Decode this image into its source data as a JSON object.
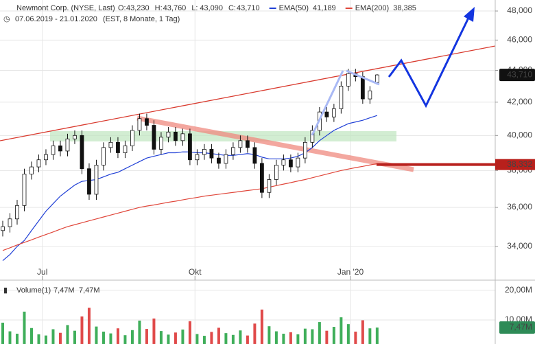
{
  "chart_data": {
    "type": "candlestick",
    "title": "Newmont Corp. (NYSE, Last)",
    "quote": [
      {
        "label": "O:",
        "value": "43,230"
      },
      {
        "label": "H:",
        "value": "43,760"
      },
      {
        "label": "L:",
        "value": "43,090"
      },
      {
        "label": "C:",
        "value": "43,710"
      }
    ],
    "period": "07.06.2019 - 21.01.2020",
    "period_note": "(EST, 8 Monate, 1 Tag)",
    "log_scale": true,
    "ylim": [
      32460,
      48780
    ],
    "yticks": [
      {
        "value": 34000,
        "label": "34,000"
      },
      {
        "value": 36000,
        "label": "36,000"
      },
      {
        "value": 38000,
        "label": "38,000"
      },
      {
        "value": 40000,
        "label": "40,000"
      },
      {
        "value": 42000,
        "label": "42,000"
      },
      {
        "value": 44000,
        "label": "44,000"
      },
      {
        "value": 46000,
        "label": "46,000"
      },
      {
        "value": 48000,
        "label": "48,000"
      }
    ],
    "xlim": [
      -0.38,
      68.4
    ],
    "xticks": [
      {
        "value": 5.5,
        "label": "Jul"
      },
      {
        "value": 26.7,
        "label": "Okt"
      },
      {
        "value": 48.3,
        "label": "Jan '20"
      }
    ],
    "up_color": "#ffffff",
    "down_color": "#111111",
    "open": [
      34800,
      35000,
      35400,
      36100,
      37800,
      38200,
      38600,
      38900,
      39400,
      39100,
      39800,
      40000,
      38100,
      36700,
      38300,
      39300,
      39600,
      39000,
      39400,
      40300,
      41000,
      40600,
      39200,
      39900,
      40200,
      39700,
      40100,
      38600,
      38900,
      39200,
      38700,
      38400,
      38900,
      39300,
      39700,
      39300,
      38400,
      36800,
      37500,
      38300,
      38600,
      38200,
      38700,
      39600,
      40300,
      41400,
      41100,
      41600,
      43000,
      43800,
      43600,
      42200,
      43230
    ],
    "high": [
      35300,
      35700,
      36400,
      38100,
      38500,
      38900,
      39200,
      39700,
      39700,
      40100,
      40300,
      40300,
      38400,
      38600,
      39600,
      39900,
      39900,
      39700,
      40600,
      41300,
      41300,
      40900,
      40200,
      40500,
      40500,
      40400,
      40400,
      39200,
      39500,
      39500,
      39000,
      39200,
      39600,
      40000,
      40000,
      39600,
      38700,
      37800,
      38600,
      38900,
      38900,
      39000,
      39900,
      40600,
      41700,
      41700,
      41900,
      43300,
      44100,
      44100,
      43900,
      43000,
      43760
    ],
    "low": [
      34500,
      34700,
      35100,
      35800,
      37500,
      37900,
      38300,
      38600,
      38800,
      38800,
      39500,
      37800,
      36400,
      36400,
      38000,
      39000,
      38700,
      38700,
      39100,
      40000,
      40300,
      38900,
      38900,
      39600,
      39400,
      39400,
      38300,
      38300,
      38600,
      38400,
      38100,
      38100,
      38600,
      39000,
      39000,
      38100,
      36500,
      36500,
      37200,
      38000,
      37900,
      37900,
      38400,
      39300,
      40000,
      40800,
      40800,
      41300,
      42700,
      43300,
      41900,
      41900,
      43090
    ],
    "close": [
      35000,
      35400,
      36100,
      37800,
      38200,
      38600,
      38900,
      39400,
      39100,
      39800,
      40000,
      38100,
      36700,
      38300,
      39300,
      39600,
      39000,
      39400,
      40300,
      41000,
      40600,
      39200,
      39900,
      40200,
      39700,
      40100,
      38600,
      38900,
      39200,
      38700,
      38400,
      38900,
      39300,
      39700,
      39300,
      38400,
      36800,
      37500,
      38300,
      38600,
      38200,
      38700,
      39600,
      40300,
      41400,
      41100,
      41600,
      43000,
      43800,
      43600,
      42200,
      42700,
      43710
    ],
    "series": [
      {
        "name": "EMA(50)",
        "color": "#1f3fd6",
        "last_label": "41,189",
        "values": [
          33300,
          33600,
          34000,
          34300,
          34800,
          35300,
          35800,
          36200,
          36600,
          36900,
          37200,
          37400,
          37450,
          37500,
          37650,
          37800,
          37900,
          38100,
          38300,
          38500,
          38700,
          38800,
          38900,
          39000,
          39000,
          39050,
          39050,
          39000,
          39000,
          38950,
          38900,
          38850,
          38850,
          38900,
          38950,
          38900,
          38750,
          38650,
          38650,
          38650,
          38700,
          38800,
          39000,
          39300,
          39700,
          40000,
          40300,
          40500,
          40700,
          40800,
          40900,
          41050,
          41189
        ]
      },
      {
        "name": "EMA(200)",
        "color": "#e0463a",
        "last_label": "38,385",
        "values": [
          33800,
          33930,
          34070,
          34200,
          34330,
          34470,
          34600,
          34730,
          34870,
          35000,
          35100,
          35200,
          35300,
          35400,
          35500,
          35600,
          35700,
          35800,
          35900,
          36000,
          36070,
          36130,
          36200,
          36270,
          36330,
          36400,
          36470,
          36530,
          36600,
          36650,
          36700,
          36750,
          36800,
          36850,
          36900,
          36950,
          37000,
          37080,
          37170,
          37250,
          37330,
          37420,
          37500,
          37600,
          37700,
          37800,
          37900,
          38000,
          38080,
          38160,
          38230,
          38310,
          38385
        ]
      }
    ],
    "last_price": {
      "value": 43710,
      "label": "43,710"
    },
    "support_line": {
      "value": 38332,
      "label": "38,332",
      "color": "#b8201c"
    },
    "volume": {
      "name": "Volume(1)",
      "legend_values": [
        "7,47M",
        "7,47M"
      ],
      "last_label": "7,47M",
      "up_color": "#3fae5a",
      "down_color": "#e04a4a",
      "ylim": [
        1950000,
        22900000
      ],
      "yticks": [
        {
          "value": 10000000,
          "label": "10,00M"
        },
        {
          "value": 20000000,
          "label": "20,00M"
        }
      ],
      "values": [
        9100000,
        6200000,
        5400000,
        12800000,
        7300000,
        5200000,
        4800000,
        6900000,
        5700000,
        8300000,
        6400000,
        11200000,
        14100000,
        7800000,
        6100000,
        5500000,
        7200000,
        4900000,
        6600000,
        9800000,
        7000000,
        10500000,
        6300000,
        5100000,
        5800000,
        6800000,
        9600000,
        5300000,
        4700000,
        6000000,
        7400000,
        5600000,
        5000000,
        6500000,
        4800000,
        8800000,
        13500000,
        7900000,
        6200000,
        5400000,
        5900000,
        5200000,
        7100000,
        6900000,
        9300000,
        6400000,
        7700000,
        10900000,
        8600000,
        6100000,
        9900000,
        7200000,
        7470000
      ]
    }
  }
}
